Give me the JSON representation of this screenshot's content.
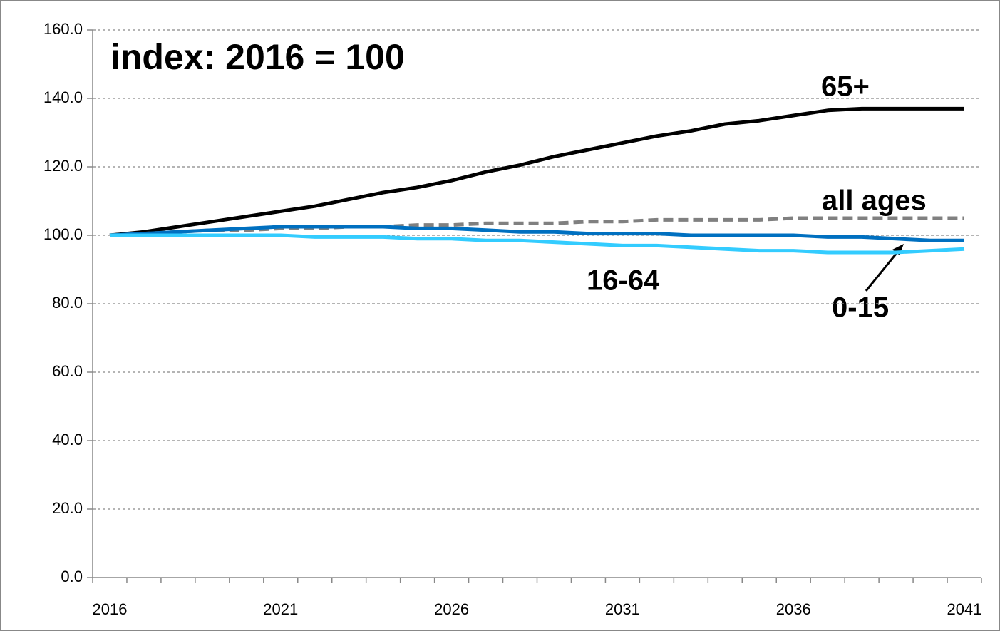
{
  "chart_data": {
    "type": "line",
    "title": "index: 2016 = 100",
    "categories": [
      "2016",
      null,
      null,
      null,
      null,
      "2021",
      null,
      null,
      null,
      null,
      "2026",
      null,
      null,
      null,
      null,
      "2031",
      null,
      null,
      null,
      null,
      "2036",
      null,
      null,
      null,
      null,
      "2041"
    ],
    "series": [
      {
        "name": "65+",
        "color": "#000000",
        "dashed": false,
        "values": [
          100,
          101,
          102.5,
          104,
          105.5,
          107,
          108.5,
          110.5,
          112.5,
          114,
          116,
          118.5,
          120.5,
          123,
          125,
          127,
          129,
          130.5,
          132.5,
          133.5,
          135,
          136.5,
          137,
          137,
          137,
          137
        ]
      },
      {
        "name": "all ages",
        "color": "#808080",
        "dashed": true,
        "values": [
          100,
          100.5,
          101,
          101.5,
          101.5,
          102,
          102,
          102.5,
          102.5,
          103,
          103,
          103.5,
          103.5,
          103.5,
          104,
          104,
          104.5,
          104.5,
          104.5,
          104.5,
          105,
          105,
          105,
          105,
          105,
          105
        ]
      },
      {
        "name": "0-15",
        "color": "#0070c0",
        "dashed": false,
        "values": [
          100,
          100.5,
          101,
          101.5,
          102,
          102.5,
          102.5,
          102.5,
          102.5,
          102,
          102,
          101.5,
          101,
          101,
          100.5,
          100.5,
          100.5,
          100,
          100,
          100,
          100,
          99.5,
          99.5,
          99,
          98.5,
          98.5
        ]
      },
      {
        "name": "16-64",
        "color": "#33ccff",
        "dashed": false,
        "values": [
          100,
          100,
          100,
          100,
          100,
          100,
          99.5,
          99.5,
          99.5,
          99,
          99,
          98.5,
          98.5,
          98,
          97.5,
          97,
          97,
          96.5,
          96,
          95.5,
          95.5,
          95,
          95,
          95,
          95.5,
          96
        ]
      }
    ],
    "ylim": [
      0,
      160
    ],
    "yticks": [
      {
        "value": 0,
        "label": "0.0"
      },
      {
        "value": 20,
        "label": "20.0"
      },
      {
        "value": 40,
        "label": "40.0"
      },
      {
        "value": 60,
        "label": "60.0"
      },
      {
        "value": 80,
        "label": "80.0"
      },
      {
        "value": 100,
        "label": "100.0"
      },
      {
        "value": 120,
        "label": "120.0"
      },
      {
        "value": 140,
        "label": "140.0"
      },
      {
        "value": 160,
        "label": "160.0"
      }
    ],
    "grid": true
  }
}
